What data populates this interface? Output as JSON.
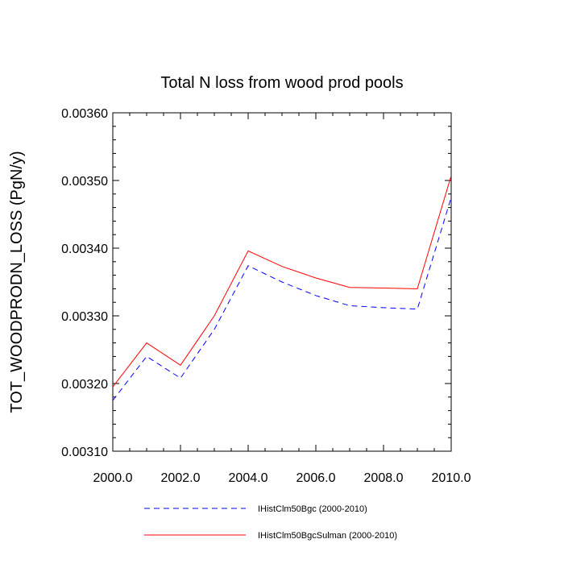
{
  "chart_data": {
    "type": "line",
    "title": "Total N loss from wood prod pools",
    "xlabel": "",
    "ylabel": "TOT_WOODPRODN_LOSS  (PgN/y)",
    "xlim": [
      2000,
      2010
    ],
    "ylim": [
      0.0031,
      0.0036
    ],
    "x_ticks": [
      "2000.0",
      "2002.0",
      "2004.0",
      "2006.0",
      "2008.0",
      "2010.0"
    ],
    "y_ticks": [
      "0.00310",
      "0.00320",
      "0.00330",
      "0.00340",
      "0.00350",
      "0.00360"
    ],
    "x": [
      2000,
      2001,
      2002,
      2003,
      2004,
      2005,
      2006,
      2007,
      2008,
      2009,
      2010
    ],
    "series": [
      {
        "name": "IHistClm50Bgc (2000-2010)",
        "color": "#0000ff",
        "dash": "dashed",
        "values": [
          0.003175,
          0.00324,
          0.003208,
          0.00328,
          0.003374,
          0.00335,
          0.00333,
          0.003315,
          0.003312,
          0.00331,
          0.003475
        ]
      },
      {
        "name": "IHistClm50BgcSulman (2000-2010)",
        "color": "#ff0000",
        "dash": "solid",
        "values": [
          0.003195,
          0.00326,
          0.003227,
          0.0033,
          0.003396,
          0.003373,
          0.003356,
          0.003342,
          0.003341,
          0.00334,
          0.003507
        ]
      }
    ],
    "grid": false,
    "legend_position": "bottom"
  }
}
